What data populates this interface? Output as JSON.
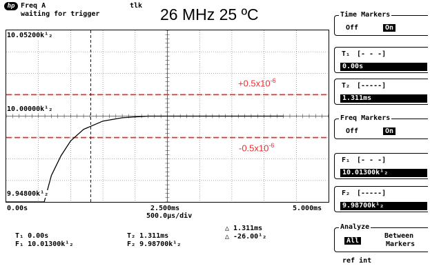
{
  "header": {
    "logo_text": "hp",
    "channel": "Freq A",
    "status": "waiting for trigger",
    "talk": "tlk",
    "caption": "26 MHz 25 ºC"
  },
  "plot": {
    "y_labels": [
      "10.05200k¹₂",
      "10.00000k¹₂",
      "9.94800k¹₂"
    ],
    "x_labels": [
      "0.00s",
      "2.500ms",
      "5.000ms"
    ],
    "x_per_div": "500.0µs/div",
    "upper_limit": "+0.5x10",
    "lower_limit": "-0.5x10",
    "limit_exponent": "-6",
    "limit_color": "#e53030",
    "trace_color": "#000000",
    "trace": {
      "x_unit": "ms",
      "y_unit": "kHz",
      "x": [
        0.0,
        0.59,
        0.7,
        0.85,
        1.0,
        1.2,
        1.5,
        1.8,
        2.2,
        2.6,
        3.0,
        3.5,
        3.8,
        4.3
      ],
      "y": [
        9.948,
        9.948,
        9.964,
        9.976,
        9.985,
        9.992,
        9.997,
        9.999,
        10.0,
        10.0,
        10.0,
        10.0,
        10.0,
        10.0
      ]
    }
  },
  "markers": {
    "t1_label": "T₁",
    "t1_value": "0.00s",
    "f1_label": "F₁",
    "f1_value": "10.01300k¹₂",
    "t2_label": "T₂",
    "t2_value": "1.311ms",
    "f2_label": "F₂",
    "f2_value": "9.98700k¹₂",
    "delta_t": "△ 1.311ms",
    "delta_f": "△ -26.00¹₂"
  },
  "softkeys": {
    "time_markers": {
      "title": "Time Markers",
      "off": "Off",
      "on": "On"
    },
    "t1": {
      "label": "T₁",
      "brackets": "[- - -]",
      "value": "0.00s"
    },
    "t2": {
      "label": "T₂",
      "brackets": "[-----]",
      "value": "1.311ms"
    },
    "freq_markers": {
      "title": "Freq Markers",
      "off": "Off",
      "on": "On"
    },
    "f1": {
      "label": "F₁",
      "brackets": "[- - -]",
      "value": "10.01300k¹₂"
    },
    "f2": {
      "label": "F₂",
      "brackets": "[-----]",
      "value": "9.98700k¹₂"
    },
    "analyze": {
      "title": "Analyze",
      "all": "All",
      "between_1": "Between",
      "between_2": "Markers"
    }
  },
  "footer": {
    "ref": "ref int"
  }
}
